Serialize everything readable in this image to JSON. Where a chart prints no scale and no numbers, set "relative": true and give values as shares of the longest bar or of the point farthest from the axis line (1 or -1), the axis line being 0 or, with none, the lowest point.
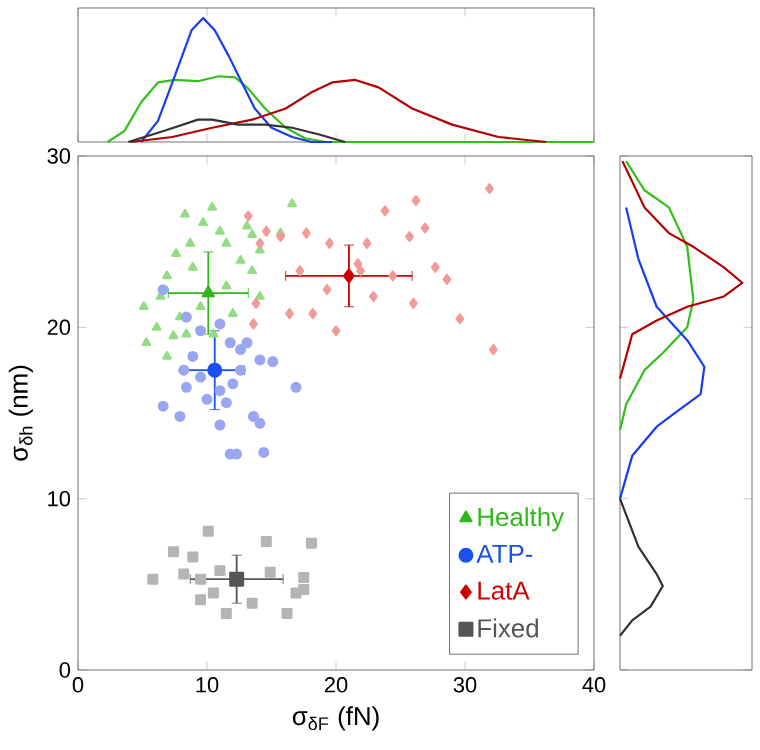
{
  "chart_data": [
    {
      "type": "scatter",
      "xlabel": "σ$_{δF}$ (fN)",
      "ylabel": "σ$_{δh}$ (nm)",
      "xlim": [
        0,
        40
      ],
      "xticks": [
        0,
        10,
        20,
        30,
        40
      ],
      "ylim": [
        0,
        30
      ],
      "yticks": [
        0,
        10,
        20,
        30
      ],
      "legend": "bottom right",
      "series": [
        {
          "color": "#93dc84",
          "marker": "triangle",
          "x": [
            8.3,
            10.4,
            16.6,
            9.7,
            11.0,
            13.1,
            13.5,
            15.7,
            7.6,
            8.7,
            11.5,
            14.1,
            6.9,
            8.9,
            12.6,
            13.5,
            5.1,
            6.4,
            7.9,
            9.5,
            12.0,
            14.1,
            5.3,
            6.9,
            8.4,
            10.5,
            6.1,
            7.4,
            11.5
          ],
          "values": [
            26.6,
            27.0,
            27.2,
            26.1,
            25.6,
            25.9,
            25.4,
            25.5,
            24.3,
            24.9,
            24.9,
            24.5,
            23.0,
            23.5,
            23.9,
            23.3,
            21.2,
            21.8,
            20.6,
            21.2,
            20.8,
            21.8,
            19.1,
            18.3,
            19.6,
            19.6,
            20.0,
            19.5,
            22.4
          ]
        },
        {
          "color": "#9aa6f2",
          "marker": "circle",
          "x": [
            6.6,
            8.4,
            9.5,
            11.0,
            11.8,
            12.6,
            14.1,
            15.1,
            8.2,
            9.5,
            8.4,
            10.0,
            11.0,
            12.0,
            12.6,
            6.6,
            7.9,
            11.0,
            13.6,
            14.1,
            11.8,
            12.3,
            14.4,
            16.9,
            8.9,
            11.5,
            13.1
          ],
          "values": [
            22.2,
            20.6,
            19.8,
            20.2,
            19.1,
            18.7,
            18.1,
            18.0,
            17.5,
            17.1,
            16.5,
            15.8,
            16.3,
            16.7,
            17.5,
            15.4,
            14.8,
            14.3,
            14.8,
            14.4,
            12.6,
            12.6,
            12.7,
            16.5,
            18.3,
            15.6,
            19.1
          ]
        },
        {
          "color": "#f29a9a",
          "marker": "diamond",
          "x": [
            31.9,
            26.2,
            23.8,
            17.7,
            15.7,
            14.6,
            13.2,
            14.1,
            19.5,
            22.4,
            25.7,
            26.9,
            27.7,
            28.6,
            29.6,
            32.2,
            26.0,
            22.9,
            20.0,
            18.2,
            16.4,
            13.6,
            13.8,
            19.3,
            21.9,
            24.4,
            17.2,
            21.7
          ],
          "values": [
            28.1,
            27.4,
            26.8,
            25.5,
            25.3,
            25.6,
            26.5,
            24.9,
            24.9,
            24.9,
            25.3,
            25.8,
            23.5,
            22.8,
            20.5,
            18.7,
            21.4,
            21.8,
            19.8,
            20.8,
            20.8,
            20.2,
            21.4,
            22.2,
            23.3,
            23.0,
            23.3,
            23.7
          ]
        },
        {
          "color": "#b4b4b4",
          "marker": "square",
          "x": [
            5.8,
            8.2,
            11.0,
            14.9,
            17.5,
            17.5,
            16.2,
            11.5,
            9.5,
            10.5,
            13.5,
            16.9,
            9.5,
            10.1,
            7.4,
            14.6,
            18.1,
            8.9
          ],
          "values": [
            5.3,
            5.6,
            5.8,
            5.7,
            5.4,
            4.7,
            3.3,
            3.3,
            4.1,
            4.5,
            3.9,
            4.5,
            5.3,
            8.1,
            6.9,
            7.5,
            7.4,
            6.6
          ]
        },
        {
          "name": "Healthy",
          "color": "#2eb81a",
          "marker": "triangle",
          "x": [
            10.1
          ],
          "values": [
            22.0
          ],
          "xerrors": [
            3.1
          ],
          "errors": [
            2.4
          ]
        },
        {
          "name": "ATP-",
          "color": "#1a4ff0",
          "marker": "circle",
          "x": [
            10.6
          ],
          "values": [
            17.5
          ],
          "xerrors": [
            2.3
          ],
          "errors": [
            2.3
          ]
        },
        {
          "name": "LatA",
          "color": "#cc0000",
          "marker": "diamond",
          "x": [
            21.0
          ],
          "values": [
            23.0
          ],
          "xerrors": [
            4.9
          ],
          "errors": [
            1.8
          ]
        },
        {
          "name": "Fixed",
          "color": "#555555",
          "marker": "square",
          "x": [
            12.3
          ],
          "values": [
            5.3
          ],
          "xerrors": [
            3.6
          ],
          "errors": [
            1.4
          ]
        }
      ]
    },
    {
      "type": "line",
      "relative": true,
      "xlim": [
        0,
        40
      ],
      "xticks": [
        0,
        10,
        20,
        30,
        40
      ],
      "tick_labels": false,
      "series": [
        {
          "color": "#33c01a",
          "x": [
            2.3,
            3.6,
            4.9,
            6.2,
            7.5,
            9.3,
            10.9,
            12.2,
            13.2,
            14.5,
            16.1,
            17.6,
            19.2,
            40
          ],
          "values": [
            0,
            0.09,
            0.32,
            0.48,
            0.5,
            0.49,
            0.53,
            0.52,
            0.43,
            0.27,
            0.115,
            0.03,
            0,
            0
          ]
        },
        {
          "color": "#1a3cf0",
          "x": [
            4.9,
            6.2,
            7.5,
            8.8,
            9.7,
            10.6,
            11.7,
            12.7,
            13.7,
            15.0,
            16.6,
            18.1,
            19.7
          ],
          "values": [
            0,
            0.17,
            0.53,
            0.9,
            1,
            0.9,
            0.69,
            0.48,
            0.27,
            0.115,
            0.04,
            0,
            0
          ]
        },
        {
          "color": "#b30000",
          "x": [
            4.1,
            7.3,
            10.4,
            13.5,
            16.1,
            18.1,
            19.7,
            21.5,
            23.3,
            25.9,
            29.0,
            32.6,
            36.3
          ],
          "values": [
            0,
            0.04,
            0.115,
            0.18,
            0.27,
            0.4,
            0.48,
            0.5,
            0.44,
            0.27,
            0.14,
            0.04,
            0
          ]
        },
        {
          "color": "#333333",
          "x": [
            3.9,
            6.7,
            9.3,
            10.4,
            12.4,
            14.5,
            16.6,
            18.7,
            20.7
          ],
          "values": [
            0,
            0.09,
            0.18,
            0.18,
            0.14,
            0.14,
            0.115,
            0.06,
            0
          ]
        }
      ]
    },
    {
      "type": "line",
      "orientation": "horizontal",
      "relative": true,
      "ylim": [
        0,
        30
      ],
      "yticks": [
        0,
        10,
        20,
        30
      ],
      "tick_labels": false,
      "series": [
        {
          "color": "#33c01a",
          "x": [
            14,
            15.5,
            17.5,
            18.5,
            20,
            21.6,
            24.7,
            27,
            28,
            29.7
          ],
          "values": [
            0,
            0.05,
            0.2,
            0.35,
            0.55,
            0.6,
            0.55,
            0.4,
            0.2,
            0.05
          ]
        },
        {
          "color": "#1a3cf0",
          "x": [
            10,
            12.5,
            14.2,
            15,
            16.1,
            17.7,
            19.25,
            21.2,
            24,
            27
          ],
          "values": [
            0,
            0.1,
            0.3,
            0.45,
            0.66,
            0.69,
            0.55,
            0.3,
            0.15,
            0.05
          ]
        },
        {
          "color": "#b30000",
          "x": [
            17,
            19.6,
            20.4,
            21.2,
            21.8,
            22.6,
            23.5,
            24.7,
            25.5,
            27,
            29.7
          ],
          "values": [
            0,
            0.1,
            0.3,
            0.55,
            0.85,
            1,
            0.85,
            0.6,
            0.4,
            0.2,
            0.02
          ]
        },
        {
          "color": "#333333",
          "x": [
            2,
            2.9,
            3.7,
            4.9,
            5.6,
            7.2,
            10
          ],
          "values": [
            0,
            0.1,
            0.25,
            0.35,
            0.3,
            0.15,
            0
          ]
        }
      ]
    }
  ]
}
